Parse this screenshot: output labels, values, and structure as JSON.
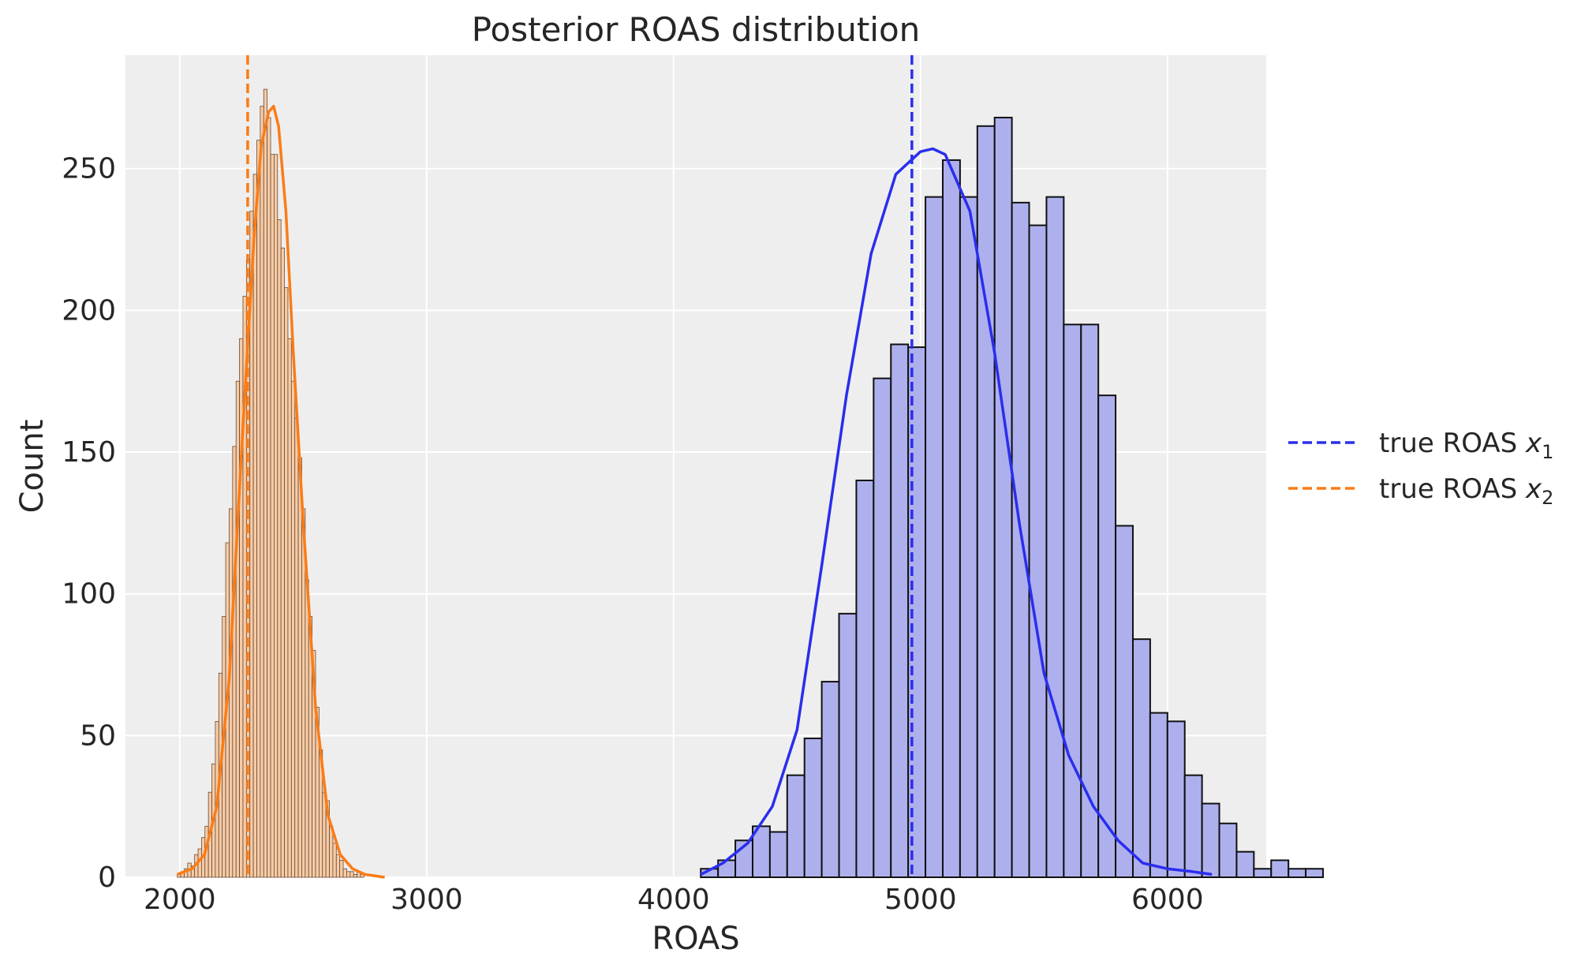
{
  "chart_data": {
    "type": "bar",
    "title": "Posterior ROAS distribution",
    "xlabel": "ROAS",
    "ylabel": "Count",
    "xlim": [
      1780,
      6400
    ],
    "ylim": [
      0,
      290
    ],
    "x_ticks": [
      2000,
      3000,
      4000,
      5000,
      6000
    ],
    "y_ticks": [
      0,
      50,
      100,
      150,
      200,
      250
    ],
    "grid": true,
    "legend_position": "right",
    "series": [
      {
        "name": "true ROAS x_1",
        "legend_base": "true ROAS ",
        "legend_var": "x",
        "legend_sub": "1",
        "color": "#2a2eec",
        "fill": "#aeb0ee",
        "true_value": 4965,
        "bin_start": 4110,
        "bin_width": 70,
        "counts": [
          3,
          6,
          13,
          18,
          16,
          36,
          49,
          69,
          93,
          140,
          176,
          188,
          187,
          240,
          253,
          240,
          265,
          268,
          238,
          230,
          240,
          195,
          195,
          170,
          124,
          84,
          58,
          55,
          36,
          26,
          19,
          9,
          3,
          6,
          3,
          3
        ],
        "kde_x": [
          4110,
          4200,
          4300,
          4400,
          4500,
          4600,
          4700,
          4800,
          4900,
          5000,
          5050,
          5100,
          5200,
          5300,
          5400,
          5500,
          5600,
          5700,
          5800,
          5900,
          6000,
          6100,
          6180
        ],
        "kde_y": [
          1,
          5,
          12,
          25,
          52,
          110,
          170,
          220,
          248,
          256,
          257,
          255,
          235,
          185,
          125,
          72,
          43,
          25,
          13,
          5,
          3,
          2,
          1
        ]
      },
      {
        "name": "true ROAS x_2",
        "legend_base": "true ROAS ",
        "legend_var": "x",
        "legend_sub": "2",
        "color": "#fa7c17",
        "fill": "#f6cba6",
        "true_value": 2275,
        "bin_start": 1990,
        "bin_width": 14,
        "counts": [
          1,
          2,
          3,
          5,
          4,
          8,
          10,
          14,
          18,
          30,
          40,
          55,
          72,
          92,
          118,
          130,
          152,
          175,
          190,
          205,
          218,
          235,
          248,
          260,
          272,
          278,
          268,
          255,
          255,
          232,
          222,
          208,
          190,
          175,
          162,
          148,
          130,
          105,
          92,
          80,
          60,
          45,
          30,
          27,
          18,
          12,
          8,
          6,
          3,
          2,
          2,
          1,
          2,
          1
        ],
        "kde_x": [
          1990,
          2050,
          2100,
          2150,
          2200,
          2250,
          2300,
          2330,
          2360,
          2380,
          2400,
          2430,
          2460,
          2500,
          2550,
          2600,
          2650,
          2700,
          2750,
          2830
        ],
        "kde_y": [
          1,
          3,
          8,
          25,
          70,
          150,
          225,
          258,
          270,
          272,
          265,
          235,
          185,
          125,
          60,
          22,
          8,
          3,
          1,
          0
        ]
      }
    ]
  }
}
